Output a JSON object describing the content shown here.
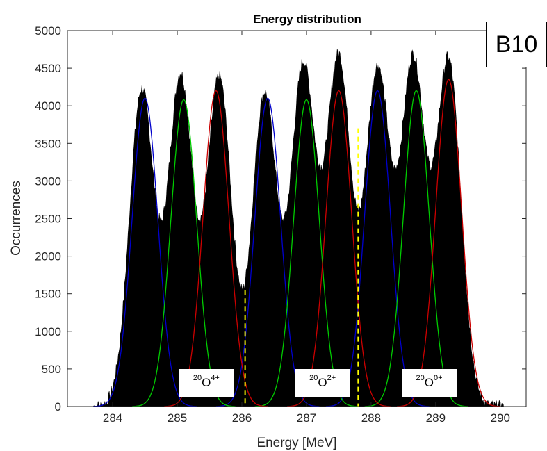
{
  "chart_data": {
    "type": "bar",
    "title": "Energy distribution",
    "xlabel": "Energy [MeV]",
    "ylabel": "Occurrences",
    "xlim": [
      283.3,
      290.4
    ],
    "ylim": [
      0,
      5000
    ],
    "x_ticks": [
      "284",
      "285",
      "286",
      "287",
      "288",
      "289",
      "290"
    ],
    "y_ticks": [
      "0",
      "500",
      "1000",
      "1500",
      "2000",
      "2500",
      "3000",
      "3500",
      "4000",
      "4500",
      "5000"
    ],
    "histogram_color": "#000000",
    "histogram_peaks": [
      {
        "center": 284.45,
        "height": 4200
      },
      {
        "center": 285.05,
        "height": 4380
      },
      {
        "center": 285.65,
        "height": 4360
      },
      {
        "center": 286.35,
        "height": 4150
      },
      {
        "center": 286.95,
        "height": 4500
      },
      {
        "center": 287.5,
        "height": 4600
      },
      {
        "center": 288.1,
        "height": 4450
      },
      {
        "center": 288.65,
        "height": 4550
      },
      {
        "center": 289.2,
        "height": 4580
      }
    ],
    "histogram_sigma": 0.19,
    "series": [
      {
        "color": "#0000cc",
        "gaussians": [
          {
            "center": 284.5,
            "height": 4100,
            "sigma": 0.2
          },
          {
            "center": 286.4,
            "height": 4100,
            "sigma": 0.2
          },
          {
            "center": 288.1,
            "height": 4200,
            "sigma": 0.2
          }
        ]
      },
      {
        "color": "#00cc00",
        "gaussians": [
          {
            "center": 285.1,
            "height": 4080,
            "sigma": 0.2
          },
          {
            "center": 287.0,
            "height": 4080,
            "sigma": 0.2
          },
          {
            "center": 288.7,
            "height": 4200,
            "sigma": 0.2
          }
        ]
      },
      {
        "color": "#cc0000",
        "gaussians": [
          {
            "center": 285.6,
            "height": 4200,
            "sigma": 0.2
          },
          {
            "center": 287.5,
            "height": 4200,
            "sigma": 0.2
          },
          {
            "center": 289.2,
            "height": 4350,
            "sigma": 0.2
          }
        ]
      }
    ],
    "dividers": [
      {
        "x": 286.05,
        "y_top": 1550,
        "color": "#ffff00"
      },
      {
        "x": 287.8,
        "y_top": 3700,
        "color": "#ffff00"
      }
    ],
    "annotations": [
      {
        "mass": "20",
        "symbol": "O",
        "charge": "4+",
        "x": 285.45,
        "y": 310
      },
      {
        "mass": "20",
        "symbol": "O",
        "charge": "2+",
        "x": 287.25,
        "y": 310
      },
      {
        "mass": "20",
        "symbol": "O",
        "charge": "0+",
        "x": 288.9,
        "y": 310
      }
    ],
    "panel_label": "B10"
  }
}
